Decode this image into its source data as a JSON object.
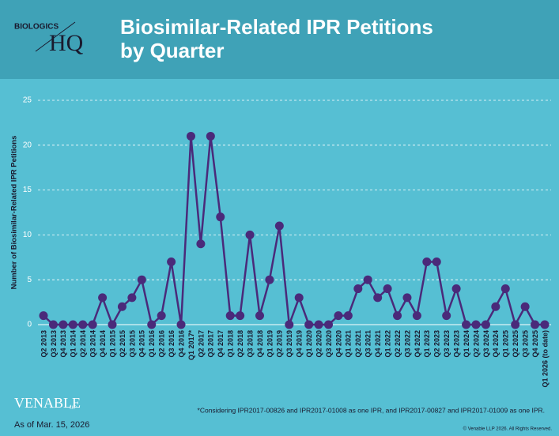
{
  "header": {
    "logo_top": "BIOLOGICS",
    "logo_bottom": "HQ",
    "title_line1": "Biosimilar-Related IPR Petitions",
    "title_line2": "by Quarter"
  },
  "footer": {
    "brand": "VENABLE",
    "brand_suffix": "LLP",
    "as_of": "As of Mar. 15, 2026",
    "footnote": "*Considering IPR2017-00826 and IPR2017-01008 as one IPR, and IPR2017-00827 and IPR2017-01009 as one IPR.",
    "copyright": "© Venable LLP 2026. All Rights Reserved."
  },
  "chart_data": {
    "type": "line",
    "y_label": "Number of Biosimilar-Related IPR Petitions",
    "categories": [
      "Q2 2013",
      "Q3 2013",
      "Q4 2013",
      "Q1 2014",
      "Q2 2014",
      "Q3 2014",
      "Q4 2014",
      "Q1 2015",
      "Q2 2015",
      "Q3 2015",
      "Q4 2015",
      "Q1 2016",
      "Q2 2016",
      "Q3 2016",
      "Q4 2016",
      "Q1 2017*",
      "Q2 2017",
      "Q3 2017",
      "Q4 2017",
      "Q1 2018",
      "Q2 2018",
      "Q3 2018",
      "Q4 2018",
      "Q1 2019",
      "Q2 2019",
      "Q3 2019",
      "Q4 2019",
      "Q1 2020",
      "Q2 2020",
      "Q3 2020",
      "Q4 2020",
      "Q1 2021",
      "Q2 2021",
      "Q3 2021",
      "Q4 2021",
      "Q1 2022",
      "Q2 2022",
      "Q3 2022",
      "Q4 2022",
      "Q1 2023",
      "Q2 2023",
      "Q3 2023",
      "Q4 2023",
      "Q1 2024",
      "Q2 2024",
      "Q3 2024",
      "Q4 2024",
      "Q1 2025",
      "Q2 2025",
      "Q3 2025",
      "Q4 2025",
      "Q1 2026 (to date)"
    ],
    "values": [
      1,
      0,
      0,
      0,
      0,
      0,
      3,
      0,
      2,
      3,
      5,
      0,
      1,
      7,
      0,
      21,
      9,
      21,
      12,
      1,
      1,
      10,
      1,
      5,
      11,
      0,
      3,
      0,
      0,
      0,
      1,
      1,
      4,
      5,
      3,
      4,
      1,
      3,
      1,
      7,
      7,
      1,
      4,
      0,
      0,
      0,
      2,
      4,
      0,
      2,
      0,
      0
    ],
    "color": "#4a2a7a",
    "ylim": [
      0,
      25
    ],
    "yticks": [
      0,
      5,
      10,
      15,
      20,
      25
    ],
    "grid": true
  }
}
